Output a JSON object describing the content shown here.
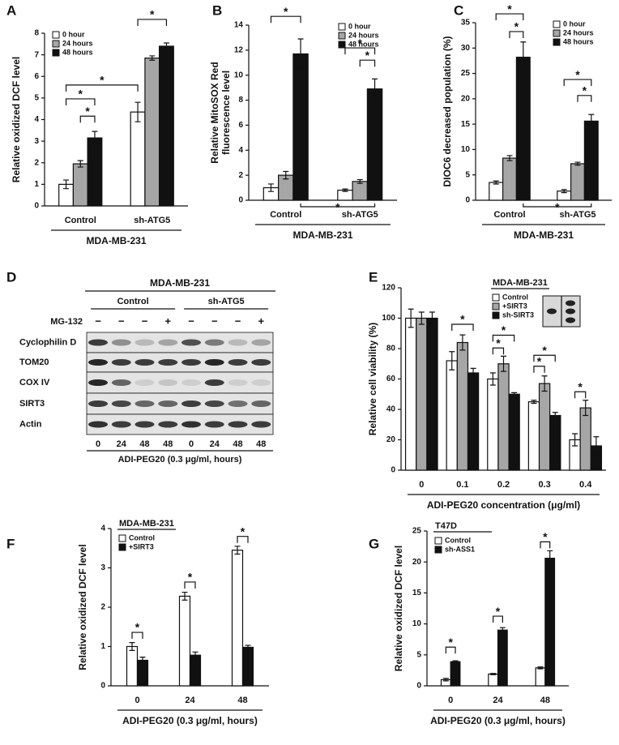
{
  "chart_data": [
    {
      "panel": "A",
      "type": "bar",
      "categories": [
        "Control",
        "sh-ATG5"
      ],
      "series": [
        {
          "name": "0 hour",
          "color": "#ffffff",
          "values": [
            1.0,
            4.35
          ],
          "errors": [
            0.2,
            0.45
          ]
        },
        {
          "name": "24 hours",
          "color": "#a6a6a6",
          "values": [
            1.95,
            6.85
          ],
          "errors": [
            0.15,
            0.1
          ]
        },
        {
          "name": "48 hours",
          "color": "#111111",
          "values": [
            3.15,
            7.4
          ],
          "errors": [
            0.3,
            0.15
          ]
        }
      ],
      "ylabel": [
        "Relative oxidized DCF level"
      ],
      "xlabel": "MDA-MB-231",
      "ylim": [
        0,
        8
      ],
      "yticks": [
        0,
        1,
        2,
        3,
        4,
        5,
        6,
        7,
        8
      ],
      "legend": "upper left",
      "annotations": [
        "*",
        "*",
        "*",
        "*"
      ]
    },
    {
      "panel": "B",
      "type": "bar",
      "categories": [
        "Control",
        "sh-ATG5"
      ],
      "series": [
        {
          "name": "0 hour",
          "color": "#ffffff",
          "values": [
            1.0,
            0.8
          ],
          "errors": [
            0.3,
            0.1
          ]
        },
        {
          "name": "24 hours",
          "color": "#a6a6a6",
          "values": [
            2.0,
            1.5
          ],
          "errors": [
            0.3,
            0.15
          ]
        },
        {
          "name": "48 hours",
          "color": "#111111",
          "values": [
            11.7,
            8.9
          ],
          "errors": [
            1.2,
            0.8
          ]
        }
      ],
      "ylabel": [
        "Relative MitoSOX Red",
        "fluorescence level"
      ],
      "xlabel": "MDA-MB-231",
      "ylim": [
        0,
        14
      ],
      "yticks": [
        0,
        2,
        4,
        6,
        8,
        10,
        12,
        14
      ],
      "legend": "upper right",
      "annotations": [
        "*",
        "*",
        "*",
        "*"
      ]
    },
    {
      "panel": "C",
      "type": "bar",
      "categories": [
        "Control",
        "sh-ATG5"
      ],
      "series": [
        {
          "name": "0 hour",
          "color": "#ffffff",
          "values": [
            3.5,
            1.8
          ],
          "errors": [
            0.3,
            0.3
          ]
        },
        {
          "name": "24 hours",
          "color": "#a6a6a6",
          "values": [
            8.3,
            7.2
          ],
          "errors": [
            0.5,
            0.3
          ]
        },
        {
          "name": "48 hours",
          "color": "#111111",
          "values": [
            28.2,
            15.6
          ],
          "errors": [
            3.0,
            1.3
          ]
        }
      ],
      "ylabel": [
        "DIOC6 decreased population (%)"
      ],
      "xlabel": "MDA-MB-231",
      "ylim": [
        0,
        35
      ],
      "yticks": [
        0,
        5,
        10,
        15,
        20,
        25,
        30,
        35
      ],
      "legend": "upper right",
      "annotations": [
        "*",
        "*",
        "*",
        "*",
        "*"
      ]
    },
    {
      "panel": "E",
      "type": "bar",
      "categories": [
        "0",
        "0.1",
        "0.2",
        "0.3",
        "0.4"
      ],
      "series": [
        {
          "name": "Control",
          "color": "#ffffff",
          "values": [
            100,
            72,
            60,
            45,
            20
          ],
          "errors": [
            6,
            6,
            4,
            1,
            4
          ]
        },
        {
          "name": "+SIRT3",
          "color": "#a6a6a6",
          "values": [
            100,
            84,
            70,
            57,
            41
          ],
          "errors": [
            4,
            5,
            5,
            5,
            5
          ]
        },
        {
          "name": "sh-SIRT3",
          "color": "#111111",
          "values": [
            100,
            64,
            50,
            36,
            16
          ],
          "errors": [
            4,
            3,
            1,
            2,
            6
          ]
        }
      ],
      "ylabel": [
        "Relative cell viability (%)"
      ],
      "xlabel": "ADI-PEG20 concentration (μg/ml)",
      "ylim": [
        0,
        120
      ],
      "yticks": [
        0,
        20,
        40,
        60,
        80,
        100,
        120
      ],
      "legend": "upper right",
      "legend_title": "MDA-MB-231",
      "annotations": [
        "*",
        "*",
        "*",
        "*",
        "*",
        "*"
      ]
    },
    {
      "panel": "F",
      "type": "bar",
      "categories": [
        "0",
        "24",
        "48"
      ],
      "series": [
        {
          "name": "Control",
          "color": "#ffffff",
          "values": [
            1.0,
            2.28,
            3.45
          ],
          "errors": [
            0.1,
            0.1,
            0.1
          ]
        },
        {
          "name": "+SIRT3",
          "color": "#111111",
          "values": [
            0.65,
            0.78,
            0.98
          ],
          "errors": [
            0.08,
            0.08,
            0.05
          ]
        }
      ],
      "ylabel": [
        "Relative oxidized DCF level"
      ],
      "xlabel": "ADI-PEG20 (0.3 μg/ml, hours)",
      "ylim": [
        0,
        4
      ],
      "yticks": [
        0,
        1,
        2,
        3,
        4
      ],
      "legend": "upper left",
      "legend_title": "MDA-MB-231",
      "annotations": [
        "*",
        "*",
        "*"
      ]
    },
    {
      "panel": "G",
      "type": "bar",
      "categories": [
        "0",
        "24",
        "48"
      ],
      "series": [
        {
          "name": "Control",
          "color": "#ffffff",
          "values": [
            1.0,
            1.9,
            2.9
          ],
          "errors": [
            0.2,
            0.1,
            0.15
          ]
        },
        {
          "name": "sh-ASS1",
          "color": "#111111",
          "values": [
            3.9,
            9.0,
            20.6
          ],
          "errors": [
            0.15,
            0.4,
            1.2
          ]
        }
      ],
      "ylabel": [
        "Relative oxidized DCF level"
      ],
      "xlabel": "ADI-PEG20 (0.3 μg/ml, hours)",
      "ylim": [
        0,
        25
      ],
      "yticks": [
        0,
        5,
        10,
        15,
        20,
        25
      ],
      "legend": "upper left",
      "legend_title": "T47D",
      "annotations": [
        "*",
        "*",
        "*"
      ]
    }
  ],
  "blot": {
    "panel": "D",
    "title": "MDA-MB-231",
    "groups": [
      "Control",
      "sh-ATG5"
    ],
    "treatment": "MG-132",
    "treatment_lanes": [
      "−",
      "−",
      "−",
      "+",
      "−",
      "−",
      "−",
      "+"
    ],
    "proteins": [
      "Cyclophilin D",
      "TOM20",
      "COX IV",
      "SIRT3",
      "Actin"
    ],
    "lanes": [
      "0",
      "24",
      "48",
      "48",
      "0",
      "24",
      "48",
      "48"
    ],
    "xlabel": "ADI-PEG20 (0.3 μg/ml, hours)"
  }
}
